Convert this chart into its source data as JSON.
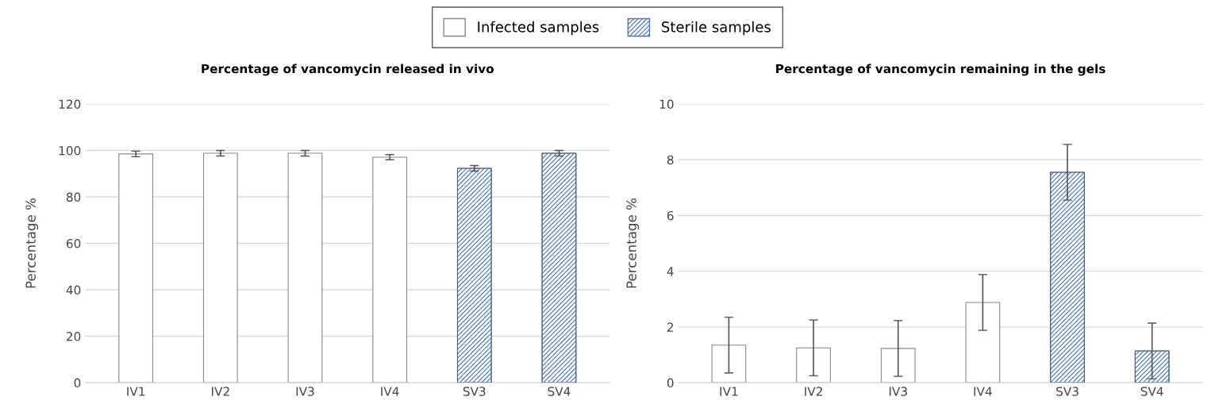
{
  "chart_data": [
    {
      "type": "bar",
      "title": "Percentage of vancomycin released in vivo",
      "ylabel": "Percentage %",
      "categories": [
        "IV1",
        "IV2",
        "IV3",
        "IV4",
        "SV3",
        "SV4"
      ],
      "series": [
        {
          "name": "Infected samples",
          "color": "#ffffff",
          "values": [
            98.5,
            98.8,
            98.8,
            97.1,
            null,
            null
          ],
          "errors": [
            1.2,
            1.2,
            1.2,
            1.1,
            null,
            null
          ]
        },
        {
          "name": "Sterile samples",
          "color": "#4472c4",
          "values": [
            null,
            null,
            null,
            null,
            92.3,
            98.8
          ],
          "errors": [
            null,
            null,
            null,
            null,
            1.2,
            1.2
          ]
        }
      ],
      "ylim": [
        0,
        120
      ],
      "yticks": [
        0,
        20,
        40,
        60,
        80,
        100,
        120
      ],
      "grid": "y",
      "legend": "top"
    },
    {
      "type": "bar",
      "title": "Percentage of vancomycin remaining in the gels",
      "ylabel": "Percentage %",
      "categories": [
        "IV1",
        "IV2",
        "IV3",
        "IV4",
        "SV3",
        "SV4"
      ],
      "series": [
        {
          "color": "#ffffff",
          "values": [
            1.35,
            1.25,
            1.23,
            2.88,
            null,
            null
          ],
          "errors": [
            1.0,
            1.0,
            1.0,
            1.0,
            null,
            null
          ]
        },
        {
          "color": "#4472c4",
          "values": [
            null,
            null,
            null,
            null,
            7.55,
            1.14
          ],
          "errors": [
            null,
            null,
            null,
            null,
            1.0,
            1.0
          ]
        }
      ],
      "ylim": [
        0,
        10
      ],
      "yticks": [
        0,
        2,
        4,
        6,
        8,
        10
      ],
      "grid": "y"
    }
  ]
}
